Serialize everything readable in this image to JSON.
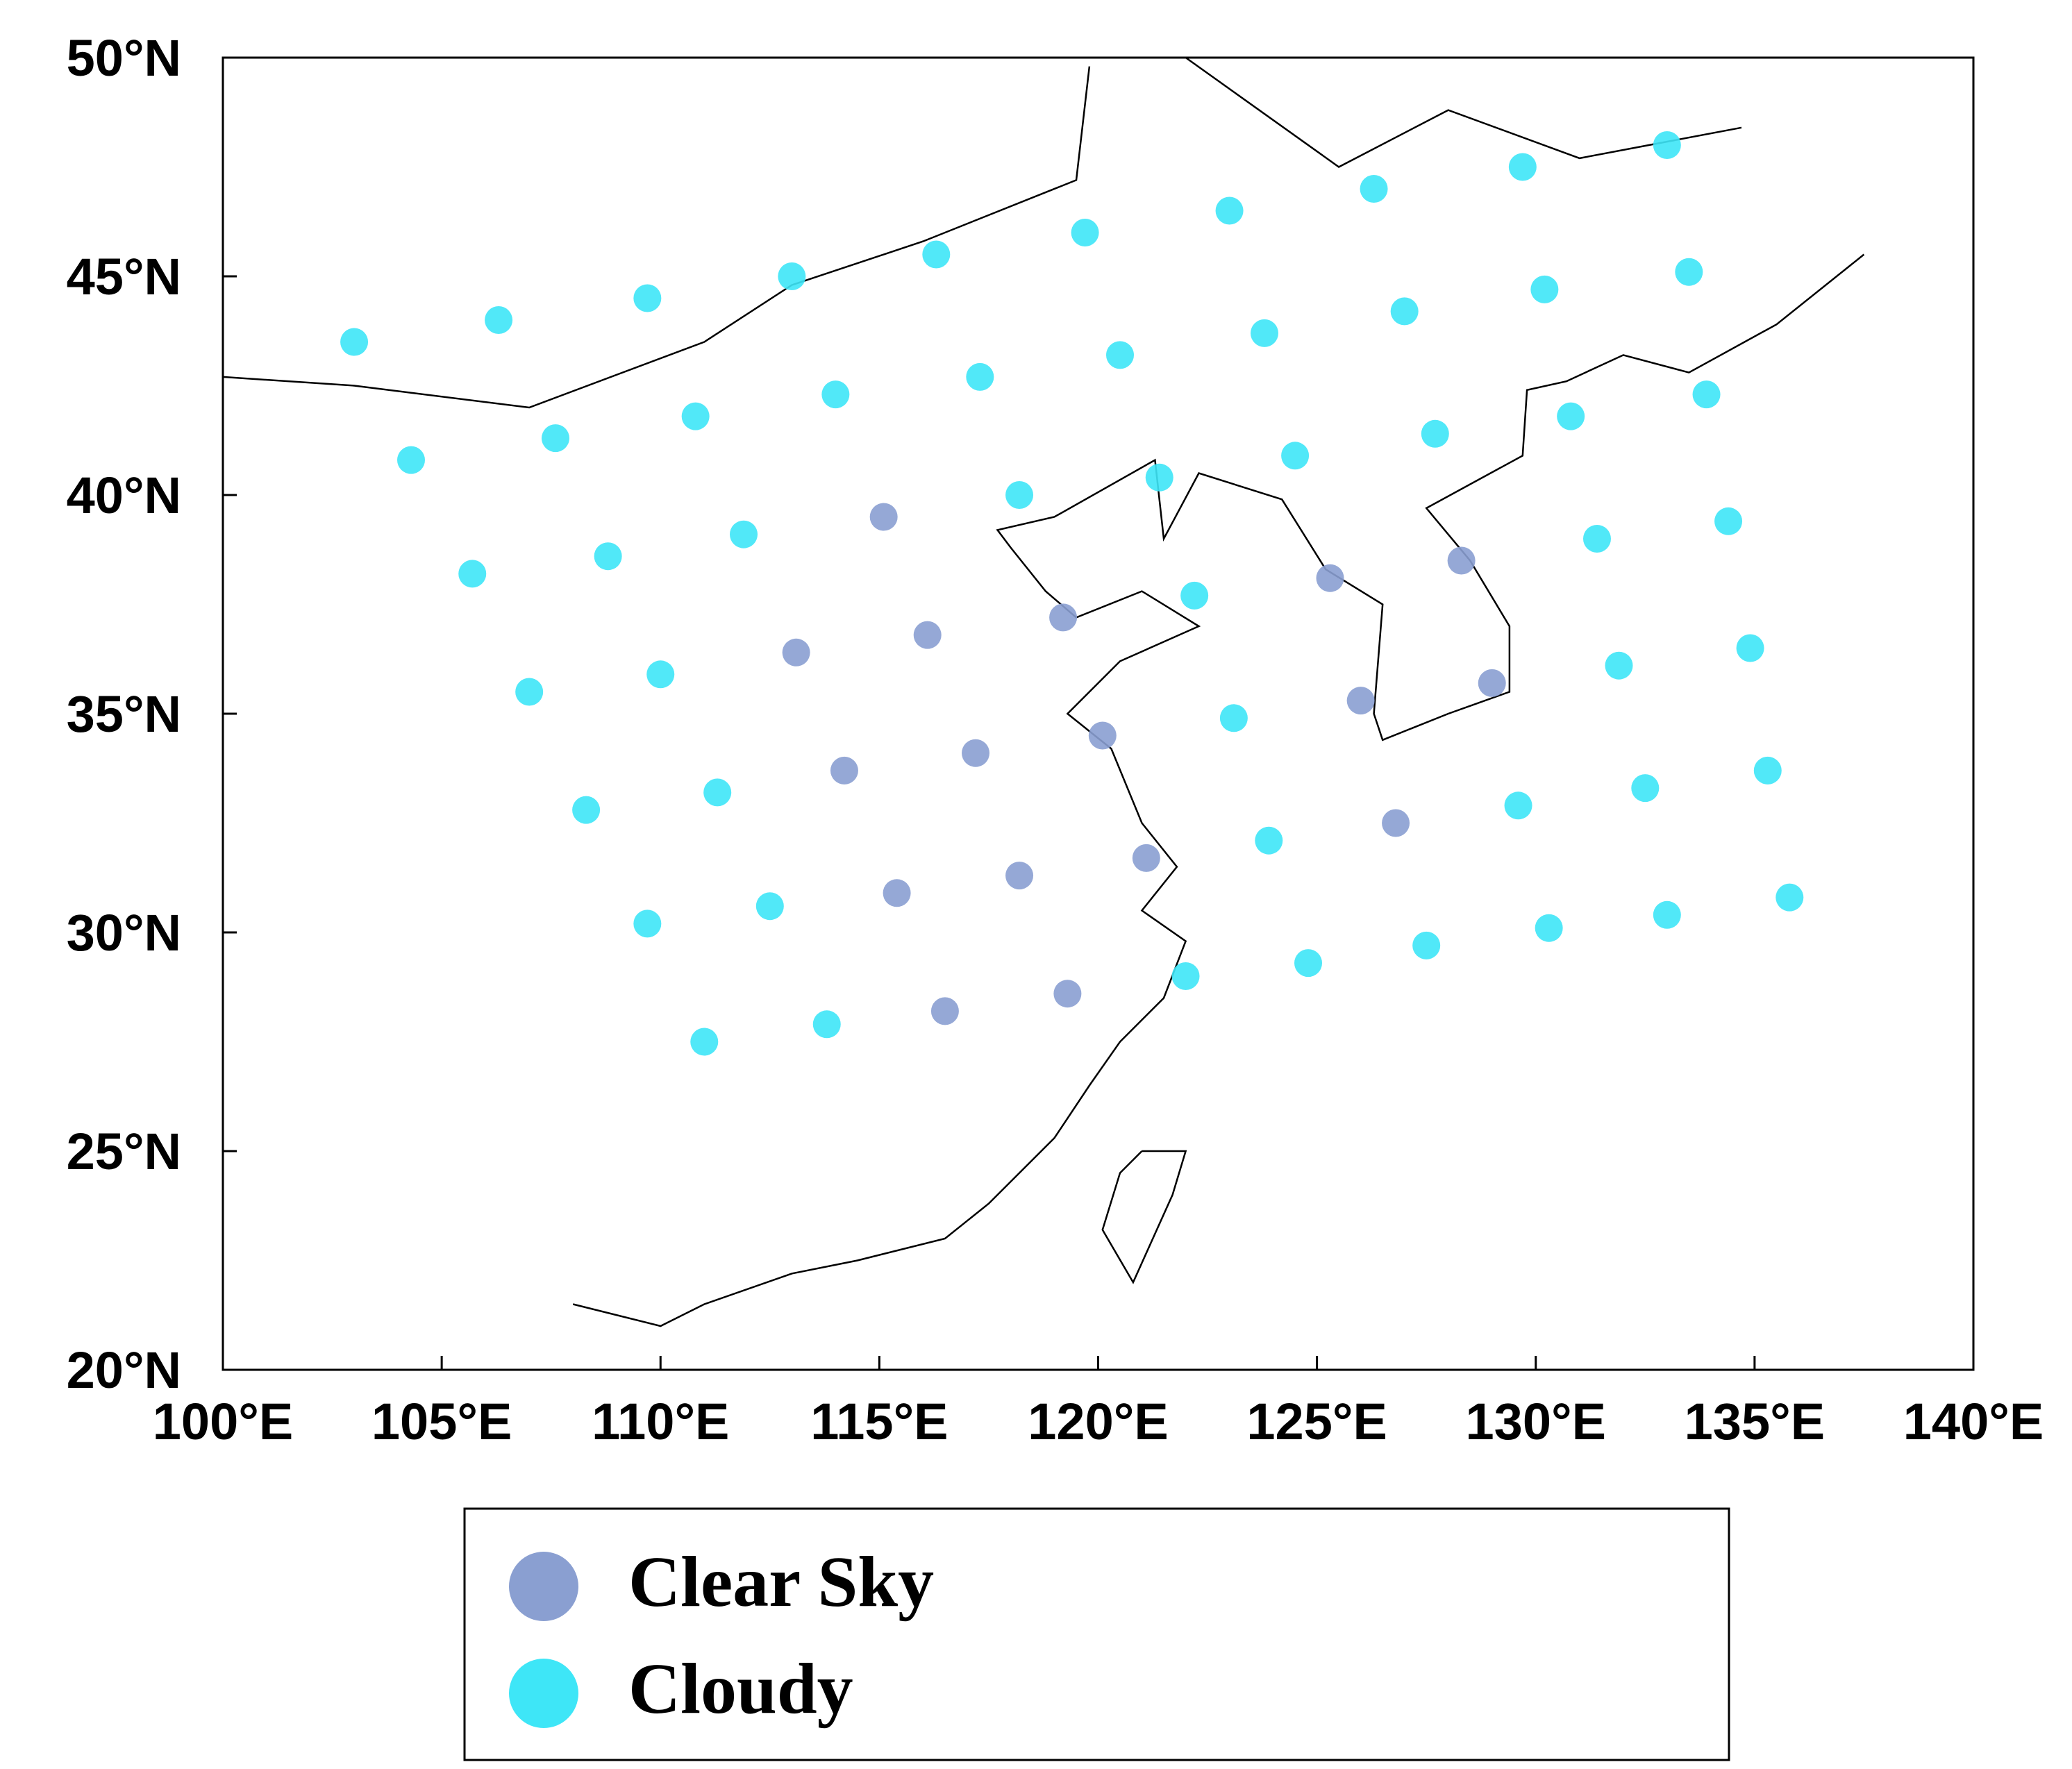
{
  "chart_data": {
    "type": "scatter",
    "xlim": [
      100,
      140
    ],
    "ylim": [
      20,
      50
    ],
    "xticks": [
      {
        "value": 100,
        "label": "100°E"
      },
      {
        "value": 105,
        "label": "105°E"
      },
      {
        "value": 110,
        "label": "110°E"
      },
      {
        "value": 115,
        "label": "115°E"
      },
      {
        "value": 120,
        "label": "120°E"
      },
      {
        "value": 125,
        "label": "125°E"
      },
      {
        "value": 130,
        "label": "130°E"
      },
      {
        "value": 135,
        "label": "135°E"
      },
      {
        "value": 140,
        "label": "140°E"
      }
    ],
    "yticks": [
      {
        "value": 20,
        "label": "20°N"
      },
      {
        "value": 25,
        "label": "25°N"
      },
      {
        "value": 30,
        "label": "30°N"
      },
      {
        "value": 35,
        "label": "35°N"
      },
      {
        "value": 40,
        "label": "40°N"
      },
      {
        "value": 45,
        "label": "45°N"
      },
      {
        "value": 50,
        "label": "50°N"
      }
    ],
    "series": [
      {
        "name": "Clear Sky",
        "color": "#8a9fd1",
        "x": [
          116.5,
          119.3,
          115.4,
          118.2,
          121.1,
          126.8,
          114.2,
          117.2,
          120.1,
          126.0,
          129.0,
          113.1,
          116.1,
          119.2,
          125.3,
          128.3,
          115.1
        ],
        "y": [
          28.2,
          28.6,
          30.9,
          31.3,
          31.7,
          32.5,
          33.7,
          34.1,
          34.5,
          35.3,
          35.7,
          36.4,
          36.8,
          37.2,
          38.1,
          38.5,
          39.5
        ]
      },
      {
        "name": "Cloudy",
        "color": "#3ee6f7",
        "x": [
          111.0,
          113.8,
          122.0,
          124.8,
          127.5,
          130.3,
          133.0,
          135.8,
          109.7,
          112.5,
          123.9,
          129.6,
          132.5,
          135.3,
          108.3,
          111.3,
          123.1,
          131.9,
          134.9,
          107.0,
          110.0,
          122.2,
          131.4,
          134.4,
          105.7,
          108.8,
          111.9,
          118.2,
          121.4,
          124.5,
          127.7,
          130.8,
          133.9,
          104.3,
          107.6,
          110.8,
          114.0,
          117.3,
          120.5,
          123.8,
          127.0,
          130.2,
          133.5,
          103.0,
          106.3,
          109.7,
          113.0,
          116.3,
          119.7,
          123.0,
          126.3,
          129.7,
          133.0
        ],
        "y": [
          27.5,
          27.9,
          29.0,
          29.3,
          29.7,
          30.1,
          30.4,
          30.8,
          30.2,
          30.6,
          32.1,
          32.9,
          33.3,
          33.7,
          32.8,
          33.2,
          34.9,
          36.1,
          36.5,
          35.5,
          35.9,
          37.7,
          39.0,
          39.4,
          38.2,
          38.6,
          39.1,
          40.0,
          40.4,
          40.9,
          41.4,
          41.8,
          42.3,
          40.8,
          41.3,
          41.8,
          42.3,
          42.7,
          43.2,
          43.7,
          44.2,
          44.7,
          45.1,
          43.5,
          44.0,
          44.5,
          45.0,
          45.5,
          46.0,
          46.5,
          47.0,
          47.5,
          48.0
        ]
      }
    ]
  }
}
